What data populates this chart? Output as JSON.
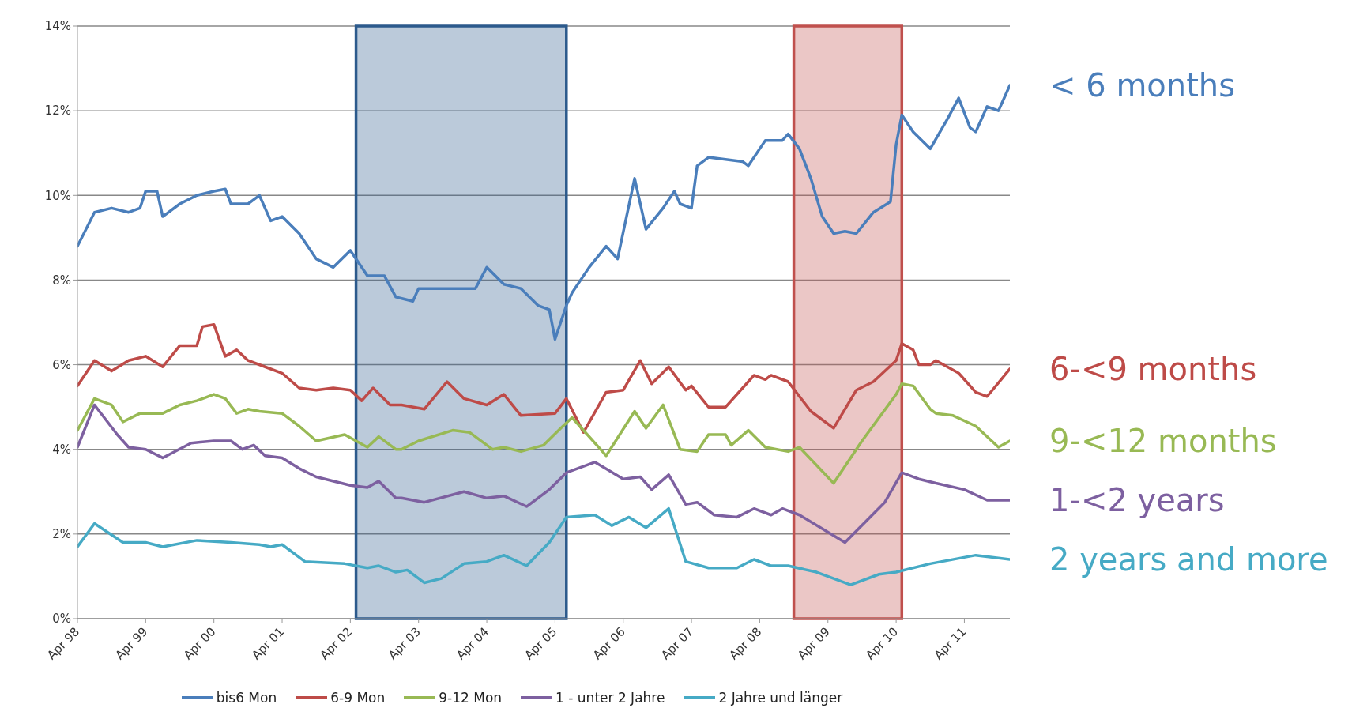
{
  "chart_data": {
    "type": "line",
    "xlim": [
      "1998-04",
      "2011-12"
    ],
    "xticks": [
      {
        "value": "1998-04",
        "label": "Apr 98"
      },
      {
        "value": "1999-04",
        "label": "Apr 99"
      },
      {
        "value": "2000-04",
        "label": "Apr 00"
      },
      {
        "value": "2001-04",
        "label": "Apr 01"
      },
      {
        "value": "2002-04",
        "label": "Apr 02"
      },
      {
        "value": "2003-04",
        "label": "Apr 03"
      },
      {
        "value": "2004-04",
        "label": "Apr 04"
      },
      {
        "value": "2005-04",
        "label": "Apr 05"
      },
      {
        "value": "2006-04",
        "label": "Apr 06"
      },
      {
        "value": "2007-04",
        "label": "Apr 07"
      },
      {
        "value": "2008-04",
        "label": "Apr 08"
      },
      {
        "value": "2009-04",
        "label": "Apr 09"
      },
      {
        "value": "2010-04",
        "label": "Apr 10"
      },
      {
        "value": "2011-04",
        "label": "Apr 11"
      }
    ],
    "ylim": [
      0,
      14
    ],
    "yticks": [
      {
        "value": 0,
        "label": "0%"
      },
      {
        "value": 2,
        "label": "2%"
      },
      {
        "value": 4,
        "label": "4%"
      },
      {
        "value": 6,
        "label": "6%"
      },
      {
        "value": 8,
        "label": "8%"
      },
      {
        "value": 10,
        "label": "10%"
      },
      {
        "value": 12,
        "label": "12%"
      },
      {
        "value": 14,
        "label": "14%"
      }
    ],
    "grid": "y",
    "legend": "bottom",
    "marker": "none",
    "line_style": "solid",
    "bands": [
      {
        "axis": "x",
        "from": "2002-05",
        "to": "2005-06",
        "color": "#2c5a8c"
      },
      {
        "axis": "x",
        "from": "2008-10",
        "to": "2010-05",
        "color": "#c0504d"
      }
    ],
    "annotations": [
      "< 6 months",
      "6-<9 months",
      "9-<12 months",
      "1-<2 years",
      "2 years and more"
    ],
    "series": [
      {
        "name": "bis6 Mon",
        "color": "#4a7ebb",
        "x": [
          "1998-04",
          "1998-07",
          "1998-10",
          "1999-01",
          "1999-03",
          "1999-04",
          "1999-06",
          "1999-07",
          "1999-10",
          "2000-01",
          "2000-04",
          "2000-06",
          "2000-07",
          "2000-10",
          "2000-12",
          "2001-02",
          "2001-04",
          "2001-07",
          "2001-10",
          "2002-01",
          "2002-04",
          "2002-07",
          "2002-10",
          "2002-12",
          "2003-03",
          "2003-04",
          "2003-07",
          "2003-10",
          "2004-02",
          "2004-04",
          "2004-07",
          "2004-10",
          "2005-01",
          "2005-03",
          "2005-04",
          "2005-05",
          "2005-06",
          "2005-07",
          "2005-10",
          "2006-01",
          "2006-03",
          "2006-06",
          "2006-08",
          "2006-11",
          "2007-01",
          "2007-02",
          "2007-04",
          "2007-05",
          "2007-07",
          "2007-10",
          "2008-01",
          "2008-02",
          "2008-05",
          "2008-08",
          "2008-09",
          "2008-11",
          "2009-01",
          "2009-03",
          "2009-05",
          "2009-07",
          "2009-09",
          "2009-12",
          "2010-03",
          "2010-04",
          "2010-05",
          "2010-07",
          "2010-10",
          "2011-01",
          "2011-03",
          "2011-05",
          "2011-06",
          "2011-08",
          "2011-10",
          "2011-12"
        ],
        "values": [
          8.8,
          9.6,
          9.7,
          9.6,
          9.7,
          10.1,
          10.1,
          9.5,
          9.8,
          10.0,
          10.1,
          10.15,
          9.8,
          9.8,
          10.0,
          9.4,
          9.5,
          9.1,
          8.5,
          8.3,
          8.7,
          8.1,
          8.1,
          7.6,
          7.5,
          7.8,
          7.8,
          7.8,
          7.8,
          8.3,
          7.9,
          7.8,
          7.4,
          7.3,
          6.6,
          7.0,
          7.4,
          7.7,
          8.3,
          8.8,
          8.5,
          10.4,
          9.2,
          9.7,
          10.1,
          9.8,
          9.7,
          10.7,
          10.9,
          10.85,
          10.8,
          10.7,
          11.3,
          11.3,
          11.45,
          11.1,
          10.4,
          9.5,
          9.1,
          9.15,
          9.1,
          9.6,
          9.85,
          11.2,
          11.9,
          11.5,
          11.1,
          11.8,
          12.3,
          11.6,
          11.5,
          12.1,
          12.0,
          12.6
        ]
      },
      {
        "name": "6-9 Mon",
        "color": "#be4b48",
        "x": [
          "1998-04",
          "1998-07",
          "1998-10",
          "1999-01",
          "1999-04",
          "1999-07",
          "1999-10",
          "2000-01",
          "2000-02",
          "2000-04",
          "2000-06",
          "2000-08",
          "2000-10",
          "2001-01",
          "2001-04",
          "2001-07",
          "2001-10",
          "2002-01",
          "2002-04",
          "2002-06",
          "2002-08",
          "2002-11",
          "2003-01",
          "2003-05",
          "2003-09",
          "2003-12",
          "2004-04",
          "2004-07",
          "2004-10",
          "2005-04",
          "2005-06",
          "2005-09",
          "2006-01",
          "2006-04",
          "2006-07",
          "2006-09",
          "2006-12",
          "2007-03",
          "2007-04",
          "2007-07",
          "2007-10",
          "2008-02",
          "2008-03",
          "2008-05",
          "2008-06",
          "2008-09",
          "2009-01",
          "2009-05",
          "2009-09",
          "2009-12",
          "2010-04",
          "2010-05",
          "2010-07",
          "2010-08",
          "2010-10",
          "2010-11",
          "2011-03",
          "2011-06",
          "2011-08",
          "2011-12"
        ],
        "values": [
          5.5,
          6.1,
          5.85,
          6.1,
          6.2,
          5.95,
          6.45,
          6.45,
          6.9,
          6.95,
          6.2,
          6.35,
          6.1,
          5.95,
          5.8,
          5.45,
          5.4,
          5.45,
          5.4,
          5.15,
          5.45,
          5.05,
          5.05,
          4.95,
          5.6,
          5.2,
          5.05,
          5.3,
          4.8,
          4.85,
          5.2,
          4.4,
          5.35,
          5.4,
          6.1,
          5.55,
          5.95,
          5.4,
          5.5,
          5.0,
          5.0,
          5.6,
          5.75,
          5.65,
          5.75,
          5.6,
          4.9,
          4.5,
          5.4,
          5.6,
          6.1,
          6.5,
          6.35,
          6.0,
          6.0,
          6.1,
          5.8,
          5.35,
          5.25,
          5.9
        ]
      },
      {
        "name": "9-12 Mon",
        "color": "#98b954",
        "x": [
          "1998-04",
          "1998-07",
          "1998-10",
          "1998-12",
          "1999-03",
          "1999-07",
          "1999-10",
          "2000-01",
          "2000-04",
          "2000-06",
          "2000-08",
          "2000-10",
          "2000-12",
          "2001-04",
          "2001-07",
          "2001-10",
          "2002-03",
          "2002-07",
          "2002-09",
          "2002-12",
          "2003-01",
          "2003-04",
          "2003-10",
          "2004-01",
          "2004-05",
          "2004-07",
          "2004-10",
          "2005-02",
          "2005-05",
          "2005-07",
          "2006-01",
          "2006-06",
          "2006-08",
          "2006-11",
          "2007-02",
          "2007-05",
          "2007-07",
          "2007-10",
          "2007-11",
          "2008-02",
          "2008-05",
          "2008-09",
          "2008-11",
          "2009-05",
          "2009-10",
          "2010-04",
          "2010-05",
          "2010-07",
          "2010-10",
          "2010-11",
          "2011-02",
          "2011-06",
          "2011-10",
          "2011-12"
        ],
        "values": [
          4.45,
          5.2,
          5.05,
          4.65,
          4.85,
          4.85,
          5.05,
          5.15,
          5.3,
          5.2,
          4.85,
          4.95,
          4.9,
          4.85,
          4.55,
          4.2,
          4.35,
          4.05,
          4.3,
          4.0,
          4.0,
          4.2,
          4.45,
          4.4,
          4.0,
          4.05,
          3.95,
          4.1,
          4.5,
          4.75,
          3.85,
          4.9,
          4.5,
          5.05,
          4.0,
          3.95,
          4.35,
          4.35,
          4.1,
          4.45,
          4.05,
          3.95,
          4.05,
          3.2,
          4.2,
          5.3,
          5.55,
          5.5,
          4.95,
          4.85,
          4.8,
          4.55,
          4.05,
          4.2
        ]
      },
      {
        "name": "1 - unter 2 Jahre",
        "color": "#7d60a0",
        "x": [
          "1998-04",
          "1998-07",
          "1998-11",
          "1999-01",
          "1999-04",
          "1999-07",
          "1999-12",
          "2000-04",
          "2000-07",
          "2000-09",
          "2000-11",
          "2001-01",
          "2001-04",
          "2001-07",
          "2001-10",
          "2002-04",
          "2002-07",
          "2002-09",
          "2002-12",
          "2003-01",
          "2003-05",
          "2003-12",
          "2004-04",
          "2004-07",
          "2004-11",
          "2005-03",
          "2005-06",
          "2005-11",
          "2006-04",
          "2006-07",
          "2006-09",
          "2006-12",
          "2007-03",
          "2007-05",
          "2007-08",
          "2007-12",
          "2008-03",
          "2008-06",
          "2008-08",
          "2008-11",
          "2009-07",
          "2010-02",
          "2010-05",
          "2010-08",
          "2010-11",
          "2011-04",
          "2011-08",
          "2011-12"
        ],
        "values": [
          4.05,
          5.05,
          4.35,
          4.05,
          4.0,
          3.8,
          4.15,
          4.2,
          4.2,
          4.0,
          4.1,
          3.85,
          3.8,
          3.55,
          3.35,
          3.15,
          3.1,
          3.25,
          2.85,
          2.85,
          2.75,
          3.0,
          2.85,
          2.9,
          2.65,
          3.05,
          3.45,
          3.7,
          3.3,
          3.35,
          3.05,
          3.4,
          2.7,
          2.75,
          2.45,
          2.4,
          2.6,
          2.45,
          2.6,
          2.45,
          1.8,
          2.75,
          3.45,
          3.3,
          3.2,
          3.05,
          2.8,
          2.8
        ]
      },
      {
        "name": "2 Jahre und länger",
        "color": "#46aac5",
        "x": [
          "1998-04",
          "1998-07",
          "1998-12",
          "1999-04",
          "1999-07",
          "2000-01",
          "2000-07",
          "2000-12",
          "2001-02",
          "2001-04",
          "2001-08",
          "2002-03",
          "2002-07",
          "2002-09",
          "2002-12",
          "2003-02",
          "2003-05",
          "2003-08",
          "2003-12",
          "2004-04",
          "2004-07",
          "2004-11",
          "2005-03",
          "2005-06",
          "2005-11",
          "2006-02",
          "2006-05",
          "2006-08",
          "2006-12",
          "2007-03",
          "2007-07",
          "2007-12",
          "2008-03",
          "2008-06",
          "2008-09",
          "2009-02",
          "2009-08",
          "2010-01",
          "2010-04",
          "2010-10",
          "2011-06",
          "2011-12"
        ],
        "values": [
          1.7,
          2.25,
          1.8,
          1.8,
          1.7,
          1.85,
          1.8,
          1.75,
          1.7,
          1.75,
          1.35,
          1.3,
          1.2,
          1.25,
          1.1,
          1.15,
          0.85,
          0.95,
          1.3,
          1.35,
          1.5,
          1.25,
          1.8,
          2.4,
          2.45,
          2.2,
          2.4,
          2.15,
          2.6,
          1.35,
          1.2,
          1.2,
          1.4,
          1.25,
          1.25,
          1.1,
          0.8,
          1.05,
          1.1,
          1.3,
          1.5,
          1.4
        ]
      }
    ]
  }
}
